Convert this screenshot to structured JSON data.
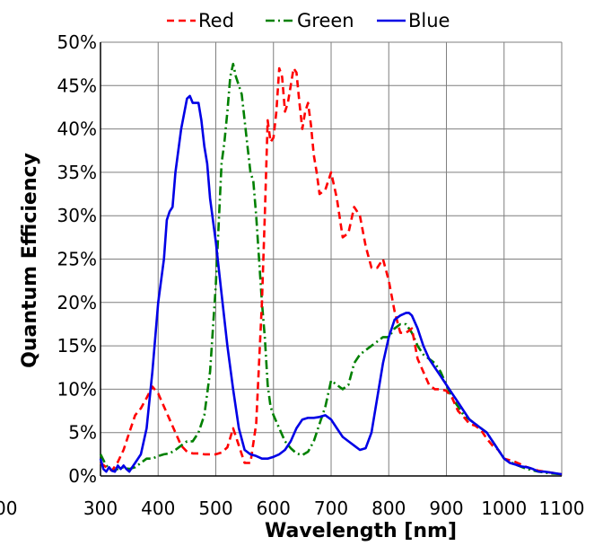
{
  "chart_data": {
    "type": "line",
    "title": "",
    "xlabel": "Wavelength [nm]",
    "ylabel": "Quantum Efficiency",
    "xlim": [
      300,
      1100
    ],
    "ylim": [
      0,
      50
    ],
    "x_ticks": [
      "300",
      "400",
      "500",
      "600",
      "700",
      "800",
      "900",
      "1000",
      "1100"
    ],
    "y_ticks": [
      "0%",
      "5%",
      "10%",
      "15%",
      "20%",
      "25%",
      "30%",
      "35%",
      "40%",
      "45%",
      "50%"
    ],
    "x_cropped_tick": "00",
    "grid": true,
    "legend_position": "top",
    "series": [
      {
        "name": "Red",
        "color": "#ff0000",
        "dash": "dashed",
        "x": [
          300,
          310,
          320,
          330,
          340,
          350,
          360,
          370,
          380,
          390,
          400,
          410,
          420,
          430,
          440,
          450,
          460,
          470,
          480,
          490,
          500,
          510,
          520,
          530,
          540,
          550,
          560,
          570,
          580,
          585,
          590,
          595,
          600,
          605,
          610,
          615,
          620,
          625,
          630,
          635,
          640,
          645,
          650,
          655,
          660,
          665,
          670,
          675,
          680,
          690,
          700,
          710,
          720,
          730,
          740,
          750,
          760,
          770,
          780,
          790,
          800,
          810,
          820,
          830,
          840,
          850,
          860,
          870,
          880,
          890,
          900,
          910,
          920,
          930,
          940,
          950,
          960,
          970,
          980,
          990,
          1000,
          1020,
          1040,
          1060,
          1080,
          1100
        ],
        "y": [
          1.5,
          1.0,
          0.6,
          1.6,
          3.0,
          5.0,
          7.0,
          7.8,
          9.0,
          10.3,
          9.5,
          8.0,
          6.5,
          5.0,
          3.5,
          2.8,
          2.6,
          2.6,
          2.5,
          2.5,
          2.5,
          2.7,
          3.3,
          5.5,
          3.5,
          1.5,
          1.5,
          6.0,
          20.0,
          30.0,
          41.0,
          38.5,
          39.0,
          42.0,
          47.0,
          46.0,
          42.0,
          43.0,
          45.0,
          47.0,
          46.5,
          43.0,
          40.0,
          42.0,
          43.0,
          40.5,
          37.0,
          35.0,
          32.5,
          33.0,
          35.0,
          32.0,
          27.5,
          28.0,
          31.0,
          30.0,
          26.5,
          24.0,
          24.0,
          25.0,
          22.5,
          19.0,
          16.5,
          16.5,
          17.0,
          13.5,
          12.0,
          10.5,
          10.0,
          10.0,
          9.8,
          9.0,
          7.5,
          6.8,
          6.0,
          5.8,
          5.3,
          4.3,
          3.5,
          3.0,
          2.0,
          1.6,
          1.0,
          0.6,
          0.4,
          0.2
        ]
      },
      {
        "name": "Green",
        "color": "#008000",
        "dash": "dashdot",
        "x": [
          300,
          310,
          320,
          330,
          340,
          350,
          360,
          370,
          380,
          390,
          400,
          410,
          420,
          430,
          440,
          450,
          460,
          470,
          480,
          490,
          500,
          510,
          515,
          520,
          525,
          530,
          535,
          540,
          545,
          550,
          555,
          560,
          565,
          570,
          575,
          580,
          585,
          590,
          595,
          600,
          610,
          620,
          630,
          640,
          650,
          660,
          670,
          680,
          690,
          700,
          710,
          720,
          730,
          740,
          750,
          760,
          770,
          780,
          790,
          800,
          810,
          820,
          830,
          840,
          850,
          860,
          870,
          880,
          890,
          900,
          910,
          920,
          930,
          940,
          950,
          960,
          970,
          980,
          990,
          1000,
          1020,
          1040,
          1060,
          1080,
          1100
        ],
        "y": [
          2.5,
          1.2,
          0.6,
          0.8,
          1.0,
          0.8,
          1.0,
          1.5,
          2.0,
          2.0,
          2.3,
          2.5,
          2.6,
          3.0,
          3.5,
          4.0,
          4.0,
          5.0,
          7.0,
          12.0,
          22.0,
          36.0,
          38.5,
          42.0,
          46.0,
          47.5,
          46.0,
          45.0,
          44.0,
          41.0,
          38.0,
          35.0,
          34.0,
          30.0,
          25.0,
          20.0,
          16.0,
          10.5,
          8.0,
          7.0,
          5.5,
          4.0,
          3.2,
          2.6,
          2.4,
          2.8,
          4.0,
          6.0,
          8.0,
          11.0,
          10.5,
          10.0,
          10.5,
          13.0,
          14.0,
          14.5,
          15.0,
          15.5,
          16.0,
          16.0,
          17.0,
          17.5,
          17.5,
          16.5,
          15.0,
          14.0,
          13.5,
          13.0,
          12.0,
          10.5,
          9.0,
          8.0,
          7.0,
          6.5,
          6.0,
          5.5,
          5.0,
          4.0,
          3.0,
          2.0,
          1.3,
          0.8,
          0.5,
          0.3,
          0.2
        ]
      },
      {
        "name": "Blue",
        "color": "#0000e6",
        "dash": "solid",
        "x": [
          300,
          305,
          310,
          315,
          320,
          325,
          330,
          335,
          340,
          345,
          350,
          355,
          360,
          370,
          380,
          390,
          400,
          410,
          415,
          420,
          425,
          430,
          440,
          450,
          455,
          460,
          465,
          470,
          475,
          480,
          485,
          490,
          500,
          510,
          520,
          530,
          540,
          550,
          560,
          570,
          580,
          590,
          600,
          610,
          620,
          630,
          640,
          650,
          660,
          670,
          680,
          690,
          700,
          710,
          720,
          730,
          740,
          750,
          760,
          770,
          780,
          790,
          800,
          810,
          820,
          830,
          835,
          840,
          850,
          860,
          870,
          880,
          890,
          900,
          910,
          920,
          930,
          940,
          950,
          960,
          970,
          980,
          990,
          1000,
          1010,
          1020,
          1030,
          1040,
          1050,
          1060,
          1070,
          1080,
          1090,
          1100
        ],
        "y": [
          2.0,
          0.8,
          0.5,
          1.0,
          0.6,
          0.5,
          1.2,
          0.8,
          1.2,
          0.8,
          0.5,
          1.0,
          1.5,
          2.5,
          5.5,
          12.0,
          20.0,
          25.0,
          29.5,
          30.5,
          31.0,
          35.0,
          40.0,
          43.5,
          43.8,
          43.0,
          43.0,
          43.0,
          41.0,
          38.0,
          36.0,
          32.0,
          27.0,
          21.0,
          15.0,
          10.0,
          5.5,
          3.0,
          2.5,
          2.3,
          2.0,
          2.0,
          2.2,
          2.5,
          3.0,
          4.0,
          5.5,
          6.5,
          6.7,
          6.7,
          6.8,
          7.0,
          6.5,
          5.5,
          4.5,
          4.0,
          3.5,
          3.0,
          3.2,
          5.0,
          9.0,
          13.0,
          16.0,
          18.0,
          18.5,
          18.8,
          18.8,
          18.5,
          17.0,
          15.0,
          13.5,
          12.5,
          11.5,
          10.5,
          9.5,
          8.5,
          7.5,
          6.5,
          6.0,
          5.5,
          5.0,
          4.0,
          3.0,
          2.0,
          1.5,
          1.3,
          1.1,
          1.0,
          0.8,
          0.5,
          0.5,
          0.4,
          0.3,
          0.2
        ]
      }
    ]
  }
}
